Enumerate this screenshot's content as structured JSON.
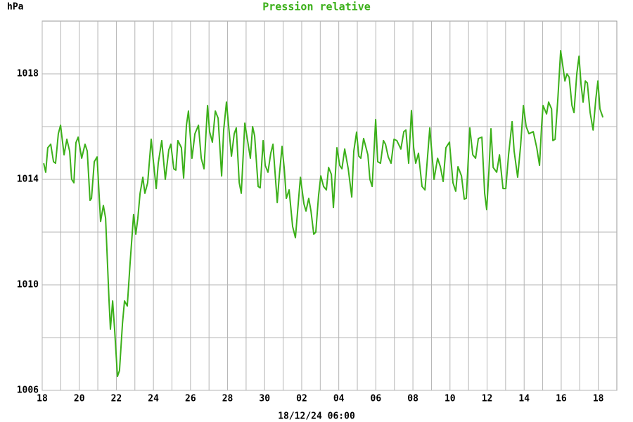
{
  "chart_data": {
    "type": "line",
    "title": "Pression relative",
    "ylabel": "hPa",
    "xlabel": "18/12/24 06:00",
    "color": "#3cb01a",
    "title_color": "#3cb01a",
    "grid": true,
    "xlim": [
      0,
      31
    ],
    "ylim": [
      1006,
      1020
    ],
    "xticks": [
      {
        "value": 0,
        "label": "18"
      },
      {
        "value": 2,
        "label": "20"
      },
      {
        "value": 4,
        "label": "22"
      },
      {
        "value": 6,
        "label": "24"
      },
      {
        "value": 8,
        "label": "26"
      },
      {
        "value": 10,
        "label": "28"
      },
      {
        "value": 12,
        "label": "30"
      },
      {
        "value": 14,
        "label": "02"
      },
      {
        "value": 16,
        "label": "04"
      },
      {
        "value": 18,
        "label": "06"
      },
      {
        "value": 20,
        "label": "08"
      },
      {
        "value": 22,
        "label": "10"
      },
      {
        "value": 24,
        "label": "12"
      },
      {
        "value": 26,
        "label": "14"
      },
      {
        "value": 28,
        "label": "16"
      },
      {
        "value": 30,
        "label": "18"
      }
    ],
    "x_minor_ticks": [
      1,
      3,
      5,
      7,
      9,
      11,
      13,
      15,
      17,
      19,
      21,
      23,
      25,
      27,
      29
    ],
    "yticks": [
      1006,
      1010,
      1014,
      1018
    ],
    "y_minor_ticks": [
      1008,
      1012,
      1016
    ],
    "x": [
      0.08,
      0.19,
      0.3,
      0.46,
      0.61,
      0.72,
      0.87,
      0.99,
      1.18,
      1.33,
      1.48,
      1.59,
      1.71,
      1.82,
      1.94,
      2.13,
      2.31,
      2.43,
      2.58,
      2.66,
      2.81,
      2.96,
      3.15,
      3.3,
      3.42,
      3.61,
      3.68,
      3.8,
      3.91,
      4.06,
      4.17,
      4.33,
      4.44,
      4.59,
      4.74,
      4.93,
      5.05,
      5.16,
      5.28,
      5.43,
      5.54,
      5.69,
      5.88,
      6.0,
      6.15,
      6.26,
      6.45,
      6.64,
      6.83,
      6.94,
      7.1,
      7.21,
      7.32,
      7.51,
      7.63,
      7.78,
      7.89,
      8.08,
      8.24,
      8.43,
      8.58,
      8.73,
      8.92,
      9.03,
      9.18,
      9.34,
      9.49,
      9.68,
      9.79,
      9.94,
      10.06,
      10.21,
      10.36,
      10.47,
      10.63,
      10.74,
      10.93,
      11.08,
      11.23,
      11.35,
      11.46,
      11.65,
      11.76,
      11.92,
      12.03,
      12.18,
      12.33,
      12.45,
      12.68,
      12.79,
      12.94,
      13.06,
      13.17,
      13.32,
      13.51,
      13.66,
      13.78,
      13.93,
      14.12,
      14.23,
      14.38,
      14.5,
      14.65,
      14.76,
      14.91,
      15.03,
      15.18,
      15.33,
      15.45,
      15.6,
      15.71,
      15.9,
      16.05,
      16.17,
      16.32,
      16.51,
      16.7,
      16.81,
      16.96,
      17.08,
      17.19,
      17.34,
      17.57,
      17.68,
      17.8,
      17.99,
      18.1,
      18.25,
      18.41,
      18.52,
      18.67,
      18.82,
      18.98,
      19.13,
      19.35,
      19.51,
      19.62,
      19.77,
      19.92,
      20.04,
      20.15,
      20.3,
      20.49,
      20.65,
      20.91,
      21.14,
      21.33,
      21.48,
      21.63,
      21.78,
      21.97,
      22.16,
      22.31,
      22.43,
      22.62,
      22.77,
      22.88,
      23.07,
      23.23,
      23.38,
      23.53,
      23.72,
      23.87,
      23.98,
      24.1,
      24.21,
      24.33,
      24.52,
      24.67,
      24.86,
      25.01,
      25.16,
      25.35,
      25.46,
      25.65,
      25.81,
      25.96,
      26.11,
      26.26,
      26.49,
      26.68,
      26.83,
      26.94,
      27.02,
      27.21,
      27.32,
      27.48,
      27.55,
      27.67,
      27.82,
      27.97,
      28.12,
      28.2,
      28.31,
      28.43,
      28.58,
      28.69,
      28.84,
      28.96,
      29.07,
      29.18,
      29.3,
      29.41,
      29.56,
      29.72,
      29.87,
      29.98,
      30.09,
      30.25
    ],
    "values": [
      1014.61,
      1014.27,
      1015.2,
      1015.33,
      1014.67,
      1014.61,
      1015.73,
      1016.05,
      1014.93,
      1015.52,
      1015.07,
      1014.0,
      1013.87,
      1015.39,
      1015.6,
      1014.8,
      1015.33,
      1015.07,
      1013.2,
      1013.28,
      1014.67,
      1014.85,
      1012.4,
      1013.01,
      1012.53,
      1009.33,
      1008.32,
      1009.39,
      1008.27,
      1006.53,
      1006.75,
      1008.53,
      1009.39,
      1009.2,
      1010.8,
      1012.67,
      1011.92,
      1012.53,
      1013.47,
      1014.08,
      1013.47,
      1013.87,
      1015.52,
      1014.67,
      1013.65,
      1014.61,
      1015.47,
      1014.0,
      1015.12,
      1015.33,
      1014.4,
      1014.35,
      1015.47,
      1015.2,
      1014.05,
      1016.05,
      1016.59,
      1014.8,
      1015.73,
      1016.05,
      1014.8,
      1014.4,
      1016.8,
      1015.81,
      1015.41,
      1016.59,
      1016.32,
      1014.13,
      1015.87,
      1016.93,
      1016.0,
      1014.88,
      1015.73,
      1015.95,
      1013.87,
      1013.47,
      1016.13,
      1015.47,
      1014.8,
      1016.0,
      1015.65,
      1013.73,
      1013.68,
      1015.47,
      1014.53,
      1014.27,
      1014.99,
      1015.33,
      1013.12,
      1014.13,
      1015.25,
      1014.4,
      1013.28,
      1013.6,
      1012.21,
      1011.79,
      1012.8,
      1014.08,
      1013.07,
      1012.8,
      1013.28,
      1012.8,
      1011.92,
      1012.0,
      1013.39,
      1014.13,
      1013.73,
      1013.6,
      1014.45,
      1014.19,
      1012.93,
      1015.2,
      1014.53,
      1014.4,
      1015.15,
      1014.4,
      1013.33,
      1015.07,
      1015.79,
      1014.88,
      1014.8,
      1015.55,
      1014.93,
      1014.0,
      1013.73,
      1016.27,
      1014.67,
      1014.61,
      1015.47,
      1015.33,
      1014.85,
      1014.61,
      1015.52,
      1015.47,
      1015.15,
      1015.81,
      1015.87,
      1014.61,
      1016.61,
      1015.2,
      1014.61,
      1014.99,
      1013.73,
      1013.6,
      1015.95,
      1014.0,
      1014.8,
      1014.48,
      1013.92,
      1015.2,
      1015.41,
      1013.87,
      1013.55,
      1014.48,
      1014.13,
      1013.25,
      1013.28,
      1015.95,
      1014.93,
      1014.8,
      1015.55,
      1015.6,
      1013.47,
      1012.85,
      1014.32,
      1015.92,
      1014.45,
      1014.27,
      1014.93,
      1013.65,
      1013.65,
      1014.93,
      1016.19,
      1015.07,
      1014.08,
      1015.28,
      1016.8,
      1016.0,
      1015.73,
      1015.81,
      1015.2,
      1014.53,
      1016.0,
      1016.8,
      1016.48,
      1016.93,
      1016.67,
      1015.47,
      1015.52,
      1017.07,
      1018.88,
      1018.13,
      1017.73,
      1018.0,
      1017.87,
      1016.8,
      1016.53,
      1018.0,
      1018.67,
      1017.6,
      1016.93,
      1017.73,
      1017.65,
      1016.53,
      1015.87,
      1017.07,
      1017.73,
      1016.67,
      1016.35
    ]
  }
}
